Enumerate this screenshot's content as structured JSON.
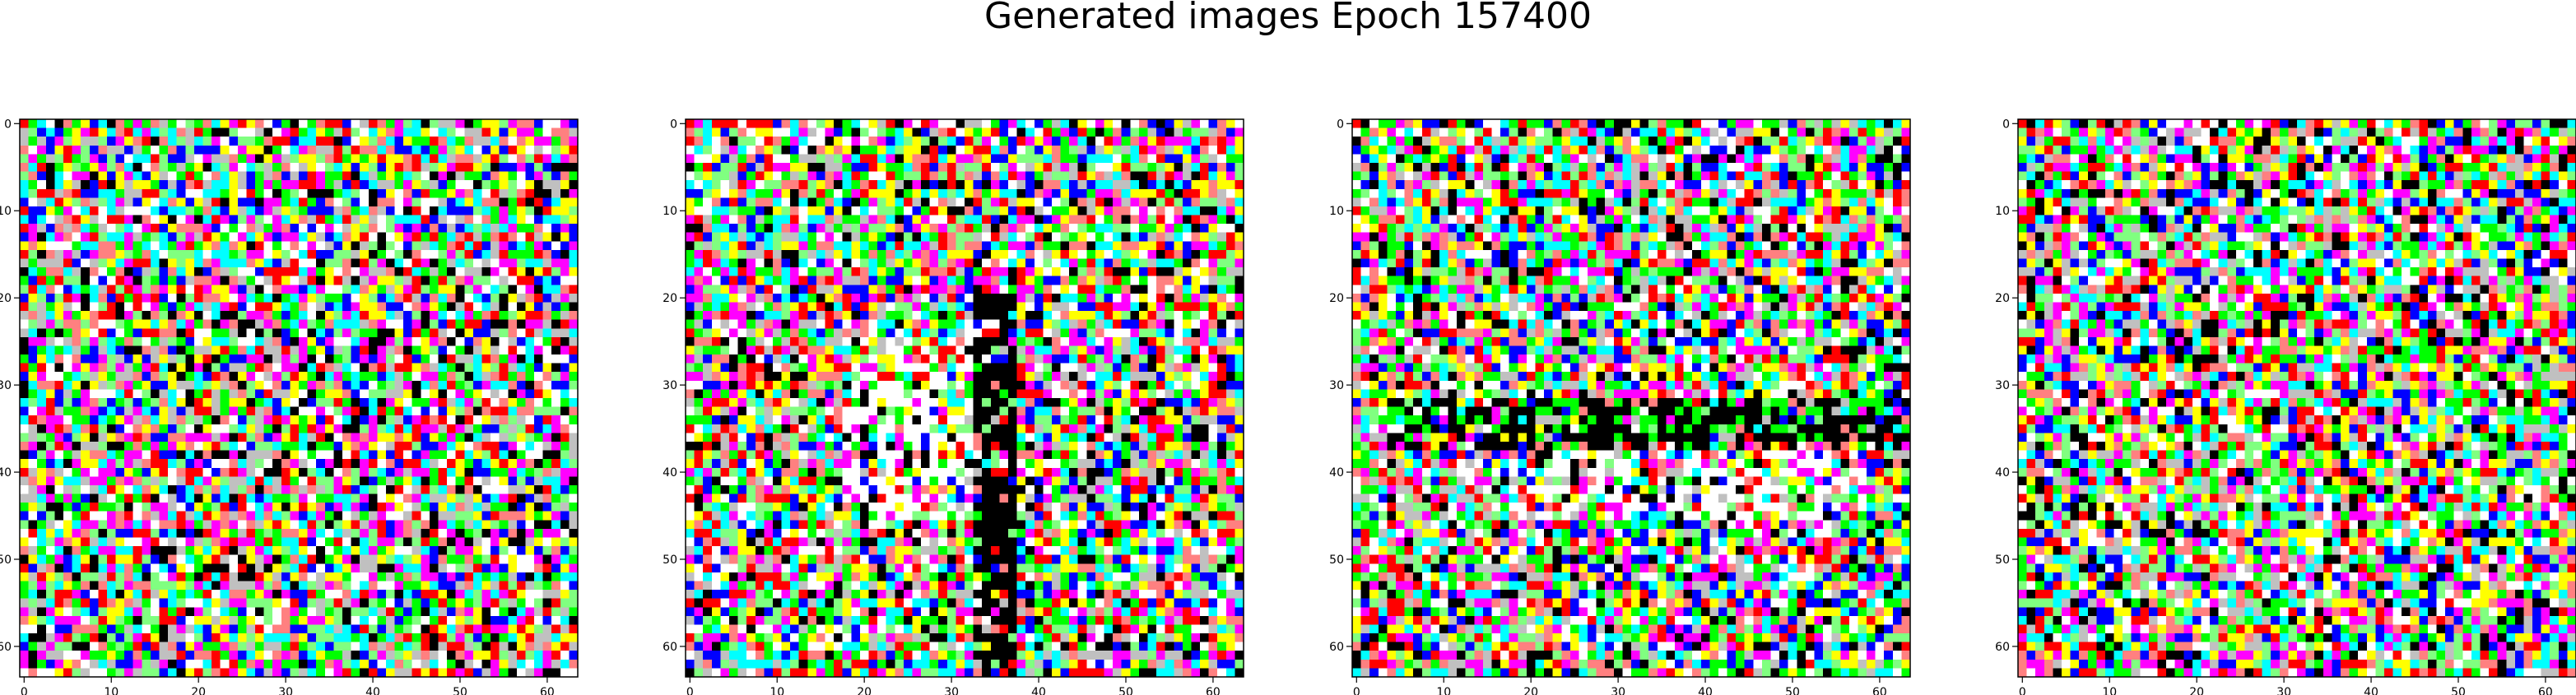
{
  "figure": {
    "title": "Generated images Epoch 157400"
  },
  "chart_data": [
    {
      "type": "heatmap",
      "subtitle": "",
      "grid_size": [
        64,
        64
      ],
      "xlim": [
        0,
        63
      ],
      "ylim": [
        63,
        0
      ],
      "xticks": [
        0,
        10,
        20,
        30,
        40,
        50,
        60
      ],
      "yticks": [
        0,
        10,
        20,
        30,
        40,
        50,
        60
      ],
      "grid": false,
      "seed": 11,
      "palette": [
        "#ffffff",
        "#000000",
        "#ff0000",
        "#00ff00",
        "#0000ff",
        "#ffff00",
        "#ff00ff",
        "#00ffff",
        "#ff8080",
        "#80ff80",
        "#c0c0c0"
      ],
      "structure": "noise"
    },
    {
      "type": "heatmap",
      "subtitle": "",
      "grid_size": [
        64,
        64
      ],
      "xlim": [
        0,
        63
      ],
      "ylim": [
        63,
        0
      ],
      "xticks": [
        0,
        10,
        20,
        30,
        40,
        50,
        60
      ],
      "yticks": [
        0,
        10,
        20,
        30,
        40,
        50,
        60
      ],
      "grid": false,
      "seed": 23,
      "palette": [
        "#ffffff",
        "#000000",
        "#ff0000",
        "#00ff00",
        "#0000ff",
        "#ffff00",
        "#ff00ff",
        "#00ffff",
        "#ff8080",
        "#80ff80",
        "#c0c0c0"
      ],
      "structure": "vertical-dark-band"
    },
    {
      "type": "heatmap",
      "subtitle": "",
      "grid_size": [
        64,
        64
      ],
      "xlim": [
        0,
        63
      ],
      "ylim": [
        63,
        0
      ],
      "xticks": [
        0,
        10,
        20,
        30,
        40,
        50,
        60
      ],
      "yticks": [
        0,
        10,
        20,
        30,
        40,
        50,
        60
      ],
      "grid": false,
      "seed": 37,
      "palette": [
        "#ffffff",
        "#000000",
        "#ff0000",
        "#00ff00",
        "#0000ff",
        "#ffff00",
        "#ff00ff",
        "#00ffff",
        "#ff8080",
        "#80ff80",
        "#c0c0c0"
      ],
      "structure": "horizontal-dark-band"
    },
    {
      "type": "heatmap",
      "subtitle": "",
      "grid_size": [
        64,
        64
      ],
      "xlim": [
        0,
        63
      ],
      "ylim": [
        63,
        0
      ],
      "xticks": [
        0,
        10,
        20,
        30,
        40,
        50,
        60
      ],
      "yticks": [
        0,
        10,
        20,
        30,
        40,
        50,
        60
      ],
      "grid": false,
      "seed": 53,
      "palette": [
        "#ffffff",
        "#000000",
        "#ff0000",
        "#00ff00",
        "#0000ff",
        "#ffff00",
        "#ff00ff",
        "#00ffff",
        "#ff8080",
        "#80ff80",
        "#c0c0c0"
      ],
      "structure": "noise"
    }
  ]
}
